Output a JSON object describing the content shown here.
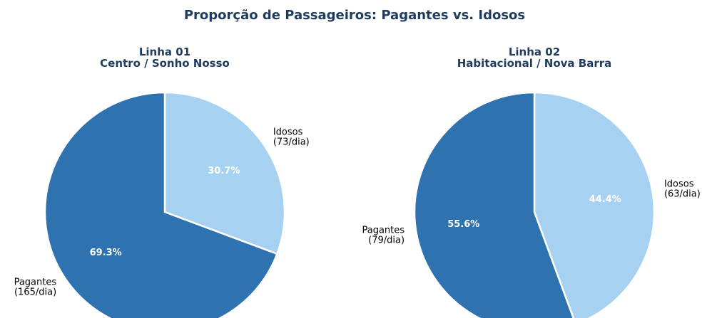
{
  "title": "Proporção de Passageiros: Pagantes vs. Idosos",
  "chart_data": [
    {
      "type": "pie",
      "title": "Linha 01\nCentro / Sonho Nosso",
      "categories": [
        "Idosos\n(73/dia)",
        "Pagantes\n(165/dia)"
      ],
      "values": [
        30.7,
        69.3
      ],
      "value_labels": [
        "30.7%",
        "69.3%"
      ],
      "colors": [
        "#a6d1f0",
        "#2e72b0"
      ]
    },
    {
      "type": "pie",
      "title": "Linha 02\nHabitacional / Nova Barra",
      "categories": [
        "Idosos\n(63/dia)",
        "Pagantes\n(79/dia)"
      ],
      "values": [
        44.4,
        55.6
      ],
      "value_labels": [
        "44.4%",
        "55.6%"
      ],
      "colors": [
        "#a6d1f0",
        "#2e72b0"
      ]
    }
  ]
}
